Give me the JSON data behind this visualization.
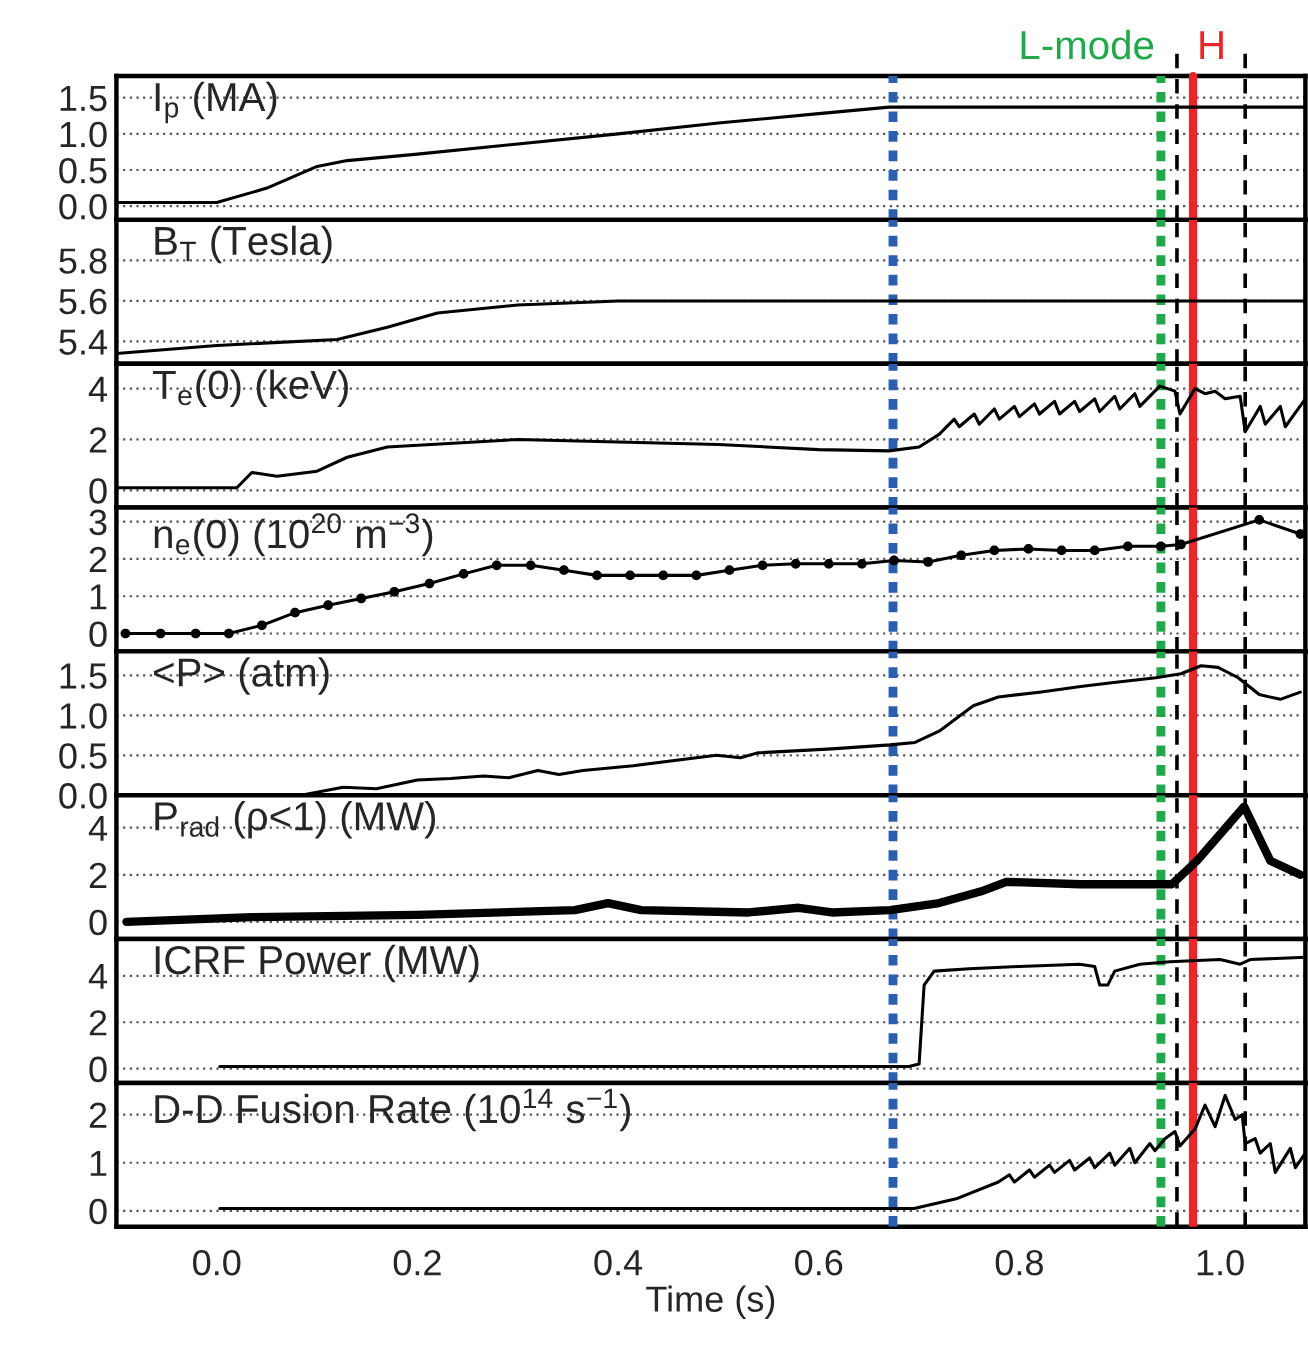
{
  "chart_data": [
    {
      "type": "line",
      "title": "I$_{p}$ (MA)",
      "xlim": [
        -0.1,
        1.085
      ],
      "ylim": [
        -0.19,
        1.8
      ],
      "yticks": [
        {
          "value": 0,
          "label": "0.0"
        },
        {
          "value": 0.5,
          "label": "0.5"
        },
        {
          "value": 1,
          "label": "1.0"
        },
        {
          "value": 1.5,
          "label": "1.5"
        }
      ],
      "grid": "y",
      "tick_labels": "y",
      "series": [
        {
          "color": "#000000",
          "x": [
            -0.1,
            0.0,
            0.05,
            0.1,
            0.13,
            0.2,
            0.3,
            0.4,
            0.5,
            0.6,
            0.67,
            1.085
          ],
          "values": [
            0.05,
            0.05,
            0.25,
            0.55,
            0.63,
            0.72,
            0.86,
            1.0,
            1.15,
            1.28,
            1.37,
            1.37
          ]
        }
      ],
      "ref_lines": [
        {
          "axis": "x",
          "value": 0.674,
          "color": "#2b5fad",
          "line_style": "dotted"
        },
        {
          "axis": "x",
          "value": 0.941,
          "color": "#22a84a",
          "line_style": "dotted",
          "label": "L-mode"
        },
        {
          "axis": "x",
          "value": 0.957,
          "color": "#000000",
          "line_style": "dashed"
        },
        {
          "axis": "x",
          "value": 0.973,
          "color": "#e8262b",
          "line_style": "solid",
          "label": "H"
        },
        {
          "axis": "x",
          "value": 1.025,
          "color": "#000000",
          "line_style": "dashed"
        }
      ]
    },
    {
      "type": "line",
      "title": "B$_{T}$ (Tesla)",
      "xlim": [
        -0.1,
        1.085
      ],
      "ylim": [
        5.29,
        6.0
      ],
      "yticks": [
        {
          "value": 5.4,
          "label": "5.4"
        },
        {
          "value": 5.6,
          "label": "5.6"
        },
        {
          "value": 5.8,
          "label": "5.8"
        }
      ],
      "grid": "y",
      "tick_labels": "y",
      "series": [
        {
          "color": "#000000",
          "x": [
            -0.1,
            0.0,
            0.12,
            0.17,
            0.22,
            0.3,
            0.4,
            1.085
          ],
          "values": [
            5.34,
            5.38,
            5.41,
            5.47,
            5.54,
            5.58,
            5.6,
            5.6
          ]
        }
      ],
      "ref_lines": [
        {
          "axis": "x",
          "value": 0.674,
          "color": "#2b5fad",
          "line_style": "dotted"
        },
        {
          "axis": "x",
          "value": 0.941,
          "color": "#22a84a",
          "line_style": "dotted"
        },
        {
          "axis": "x",
          "value": 0.957,
          "color": "#000000",
          "line_style": "dashed"
        },
        {
          "axis": "x",
          "value": 0.973,
          "color": "#e8262b",
          "line_style": "solid"
        },
        {
          "axis": "x",
          "value": 1.025,
          "color": "#000000",
          "line_style": "dashed"
        }
      ]
    },
    {
      "type": "line",
      "title": "T$_{e}$(0) (keV)",
      "xlim": [
        -0.1,
        1.085
      ],
      "ylim": [
        -0.68,
        4.98
      ],
      "yticks": [
        0,
        2,
        4
      ],
      "grid": "y",
      "tick_labels": "y",
      "series": [
        {
          "color": "#000000",
          "x": [
            -0.1,
            0.02,
            0.035,
            0.06,
            0.1,
            0.13,
            0.17,
            0.3,
            0.4,
            0.5,
            0.6,
            0.67,
            0.7,
            0.72,
            0.735,
            0.74,
            0.755,
            0.76,
            0.775,
            0.78,
            0.795,
            0.8,
            0.815,
            0.82,
            0.835,
            0.84,
            0.855,
            0.86,
            0.875,
            0.88,
            0.895,
            0.9,
            0.915,
            0.92,
            0.935,
            0.94,
            0.955,
            0.96,
            0.975,
            0.985,
            0.995,
            1.005,
            1.02,
            1.025,
            1.04,
            1.045,
            1.06,
            1.065,
            1.085
          ],
          "values": [
            0.1,
            0.1,
            0.7,
            0.55,
            0.75,
            1.3,
            1.7,
            2.0,
            1.9,
            1.8,
            1.6,
            1.55,
            1.7,
            2.2,
            2.8,
            2.5,
            3.0,
            2.6,
            3.2,
            2.8,
            3.3,
            2.9,
            3.4,
            3.0,
            3.5,
            3.0,
            3.5,
            3.1,
            3.6,
            3.1,
            3.7,
            3.2,
            3.8,
            3.3,
            3.9,
            4.1,
            3.9,
            3.0,
            4.0,
            3.8,
            3.9,
            3.6,
            3.7,
            2.3,
            3.3,
            2.6,
            3.3,
            2.5,
            3.6
          ]
        }
      ],
      "ref_lines": [
        {
          "axis": "x",
          "value": 0.674,
          "color": "#2b5fad",
          "line_style": "dotted"
        },
        {
          "axis": "x",
          "value": 0.941,
          "color": "#22a84a",
          "line_style": "dotted"
        },
        {
          "axis": "x",
          "value": 0.957,
          "color": "#000000",
          "line_style": "dashed"
        },
        {
          "axis": "x",
          "value": 0.973,
          "color": "#e8262b",
          "line_style": "solid"
        },
        {
          "axis": "x",
          "value": 1.025,
          "color": "#000000",
          "line_style": "dashed"
        }
      ]
    },
    {
      "type": "line",
      "title": "n$_{e}$(0) (10$^{20}$ m$^{−3}$)",
      "xlim": [
        -0.1,
        1.085
      ],
      "ylim": [
        -0.48,
        3.38
      ],
      "yticks": [
        0,
        1,
        2,
        3
      ],
      "grid": "y",
      "tick_labels": "y",
      "marker": "circle",
      "series": [
        {
          "color": "#000000",
          "x": [
            -0.091,
            -0.056,
            -0.021,
            0.012,
            0.045,
            0.078,
            0.111,
            0.144,
            0.177,
            0.212,
            0.246,
            0.279,
            0.313,
            0.346,
            0.379,
            0.412,
            0.445,
            0.478,
            0.511,
            0.544,
            0.577,
            0.61,
            0.643,
            0.675,
            0.709,
            0.742,
            0.775,
            0.809,
            0.842,
            0.875,
            0.908,
            0.941,
            0.961,
            1.039,
            1.08
          ],
          "values": [
            0.0,
            0.0,
            0.0,
            0.0,
            0.22,
            0.56,
            0.76,
            0.94,
            1.12,
            1.34,
            1.6,
            1.83,
            1.83,
            1.7,
            1.56,
            1.56,
            1.56,
            1.56,
            1.7,
            1.83,
            1.87,
            1.87,
            1.87,
            1.96,
            1.92,
            2.1,
            2.23,
            2.27,
            2.23,
            2.23,
            2.34,
            2.34,
            2.39,
            3.05,
            2.67
          ]
        }
      ],
      "ref_lines": [
        {
          "axis": "x",
          "value": 0.674,
          "color": "#2b5fad",
          "line_style": "dotted"
        },
        {
          "axis": "x",
          "value": 0.941,
          "color": "#22a84a",
          "line_style": "dotted"
        },
        {
          "axis": "x",
          "value": 0.957,
          "color": "#000000",
          "line_style": "dashed"
        },
        {
          "axis": "x",
          "value": 0.973,
          "color": "#e8262b",
          "line_style": "solid"
        },
        {
          "axis": "x",
          "value": 1.025,
          "color": "#000000",
          "line_style": "dashed"
        }
      ]
    },
    {
      "type": "line",
      "title": "<P> (atm)",
      "xlim": [
        -0.1,
        1.085
      ],
      "ylim": [
        0,
        1.8
      ],
      "yticks": [
        {
          "value": 0,
          "label": "0.0"
        },
        {
          "value": 0.5,
          "label": "0.5"
        },
        {
          "value": 1,
          "label": "1.0"
        },
        {
          "value": 1.5,
          "label": "1.5"
        }
      ],
      "grid": "y",
      "tick_labels": "y",
      "series": [
        {
          "color": "#000000",
          "x": [
            0.084,
            0.126,
            0.159,
            0.2,
            0.233,
            0.266,
            0.291,
            0.32,
            0.341,
            0.365,
            0.415,
            0.498,
            0.522,
            0.539,
            0.613,
            0.671,
            0.696,
            0.721,
            0.754,
            0.779,
            0.82,
            0.861,
            0.894,
            0.936,
            0.961,
            0.981,
            0.998,
            1.018,
            1.039,
            1.06,
            1.08
          ],
          "values": [
            0.0,
            0.1,
            0.08,
            0.19,
            0.21,
            0.24,
            0.22,
            0.31,
            0.26,
            0.31,
            0.37,
            0.5,
            0.47,
            0.53,
            0.58,
            0.63,
            0.66,
            0.81,
            1.12,
            1.23,
            1.29,
            1.36,
            1.41,
            1.47,
            1.52,
            1.62,
            1.6,
            1.47,
            1.26,
            1.2,
            1.29
          ]
        }
      ],
      "ref_lines": [
        {
          "axis": "x",
          "value": 0.674,
          "color": "#2b5fad",
          "line_style": "dotted"
        },
        {
          "axis": "x",
          "value": 0.941,
          "color": "#22a84a",
          "line_style": "dotted"
        },
        {
          "axis": "x",
          "value": 0.957,
          "color": "#000000",
          "line_style": "dashed"
        },
        {
          "axis": "x",
          "value": 0.973,
          "color": "#e8262b",
          "line_style": "solid"
        },
        {
          "axis": "x",
          "value": 1.025,
          "color": "#000000",
          "line_style": "dashed"
        }
      ]
    },
    {
      "type": "line",
      "title": "P$_{rad}$ (ρ<1) (MW)",
      "xlim": [
        -0.1,
        1.085
      ],
      "ylim": [
        -0.73,
        5.38
      ],
      "yticks": [
        0,
        2,
        4
      ],
      "grid": "y",
      "tick_labels": "y",
      "series": [
        {
          "color": "#000000",
          "x": [
            -0.09,
            0.035,
            0.2,
            0.357,
            0.39,
            0.423,
            0.53,
            0.58,
            0.613,
            0.671,
            0.72,
            0.762,
            0.787,
            0.861,
            0.952,
            0.977,
            1.024,
            1.05,
            1.08
          ],
          "values": [
            0.0,
            0.2,
            0.3,
            0.5,
            0.8,
            0.5,
            0.4,
            0.6,
            0.4,
            0.5,
            0.8,
            1.3,
            1.7,
            1.6,
            1.6,
            2.6,
            4.9,
            2.6,
            2.0
          ]
        }
      ],
      "ref_lines": [
        {
          "axis": "x",
          "value": 0.674,
          "color": "#2b5fad",
          "line_style": "dotted"
        },
        {
          "axis": "x",
          "value": 0.941,
          "color": "#22a84a",
          "line_style": "dotted"
        },
        {
          "axis": "x",
          "value": 0.957,
          "color": "#000000",
          "line_style": "dashed"
        },
        {
          "axis": "x",
          "value": 0.973,
          "color": "#e8262b",
          "line_style": "solid"
        },
        {
          "axis": "x",
          "value": 1.025,
          "color": "#000000",
          "line_style": "dashed"
        }
      ]
    },
    {
      "type": "line",
      "title": "ICRF Power (MW)",
      "xlim": [
        -0.1,
        1.085
      ],
      "ylim": [
        -0.61,
        5.58
      ],
      "yticks": [
        0,
        2,
        4
      ],
      "grid": "y",
      "tick_labels": "y",
      "series": [
        {
          "color": "#000000",
          "x": [
            0.003,
            0.69,
            0.7,
            0.705,
            0.715,
            0.75,
            0.8,
            0.86,
            0.875,
            0.88,
            0.888,
            0.895,
            0.92,
            0.95,
            1.0,
            1.02,
            1.03,
            1.085
          ],
          "values": [
            0.1,
            0.1,
            0.2,
            3.6,
            4.2,
            4.3,
            4.4,
            4.5,
            4.4,
            3.6,
            3.6,
            4.2,
            4.5,
            4.6,
            4.7,
            4.5,
            4.7,
            4.8
          ]
        }
      ],
      "ref_lines": [
        {
          "axis": "x",
          "value": 0.674,
          "color": "#2b5fad",
          "line_style": "dotted"
        },
        {
          "axis": "x",
          "value": 0.941,
          "color": "#22a84a",
          "line_style": "dotted"
        },
        {
          "axis": "x",
          "value": 0.957,
          "color": "#000000",
          "line_style": "dashed"
        },
        {
          "axis": "x",
          "value": 0.973,
          "color": "#e8262b",
          "line_style": "solid"
        },
        {
          "axis": "x",
          "value": 1.025,
          "color": "#000000",
          "line_style": "dashed"
        }
      ]
    },
    {
      "type": "line",
      "title": "D-D Fusion Rate (10$^{14}$ s$^{−1}$)",
      "xlabel": "Time (s)",
      "xlim": [
        -0.1,
        1.085
      ],
      "ylim": [
        -0.33,
        2.66
      ],
      "xticks": [
        {
          "value": 0,
          "label": "0.0"
        },
        {
          "value": 0.2,
          "label": "0.2"
        },
        {
          "value": 0.4,
          "label": "0.4"
        },
        {
          "value": 0.6,
          "label": "0.6"
        },
        {
          "value": 0.8,
          "label": "0.8"
        },
        {
          "value": 1.0,
          "label": "1.0"
        }
      ],
      "yticks": [
        0,
        1,
        2
      ],
      "grid": "y",
      "series": [
        {
          "color": "#000000",
          "x": [
            0.003,
            0.695,
            0.737,
            0.779,
            0.79,
            0.795,
            0.81,
            0.815,
            0.83,
            0.835,
            0.85,
            0.855,
            0.87,
            0.875,
            0.89,
            0.895,
            0.91,
            0.915,
            0.93,
            0.935,
            0.945,
            0.955,
            0.96,
            0.975,
            0.985,
            0.995,
            1.005,
            1.015,
            1.022,
            1.025,
            1.035,
            1.04,
            1.05,
            1.055,
            1.07,
            1.075,
            1.085
          ],
          "values": [
            0.05,
            0.05,
            0.25,
            0.6,
            0.75,
            0.6,
            0.85,
            0.7,
            0.95,
            0.8,
            1.05,
            0.85,
            1.1,
            0.9,
            1.2,
            0.95,
            1.3,
            1.0,
            1.4,
            1.25,
            1.5,
            1.65,
            1.35,
            1.7,
            2.2,
            1.75,
            2.4,
            1.9,
            2.0,
            1.4,
            1.5,
            1.2,
            1.4,
            0.8,
            1.3,
            0.9,
            1.2
          ]
        }
      ],
      "ref_lines": [
        {
          "axis": "x",
          "value": 0.674,
          "color": "#2b5fad",
          "line_style": "dotted"
        },
        {
          "axis": "x",
          "value": 0.941,
          "color": "#22a84a",
          "line_style": "dotted"
        },
        {
          "axis": "x",
          "value": 0.957,
          "color": "#000000",
          "line_style": "dashed"
        },
        {
          "axis": "x",
          "value": 0.973,
          "color": "#e8262b",
          "line_style": "solid"
        },
        {
          "axis": "x",
          "value": 1.025,
          "color": "#000000",
          "line_style": "dashed"
        }
      ]
    }
  ]
}
